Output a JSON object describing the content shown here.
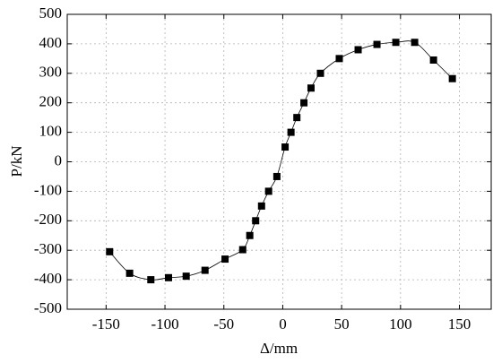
{
  "chart_data": {
    "type": "line",
    "x_label": "Δ/mm",
    "y_label": "P/kN",
    "x": [
      -147,
      -130,
      -112,
      -97,
      -82,
      -66,
      -49,
      -34,
      -28,
      -23,
      -18,
      -12,
      -5,
      2,
      7,
      12,
      18,
      24,
      32,
      48,
      64,
      80,
      96,
      112,
      128,
      144
    ],
    "series": [
      {
        "color": "#000000",
        "values": [
          -305,
          -378,
          -400,
          -393,
          -388,
          -368,
          -330,
          -298,
          -250,
          -200,
          -150,
          -100,
          -50,
          50,
          100,
          150,
          200,
          250,
          300,
          350,
          380,
          398,
          405,
          405,
          345,
          282
        ]
      }
    ],
    "xlim": [
      -183,
      177
    ],
    "xticks": [
      -150,
      -100,
      -50,
      0,
      50,
      100,
      150
    ],
    "ylim": [
      -500,
      500
    ],
    "yticks": [
      -500,
      -400,
      -300,
      -200,
      -100,
      0,
      100,
      200,
      300,
      400,
      500
    ],
    "grid": true
  }
}
